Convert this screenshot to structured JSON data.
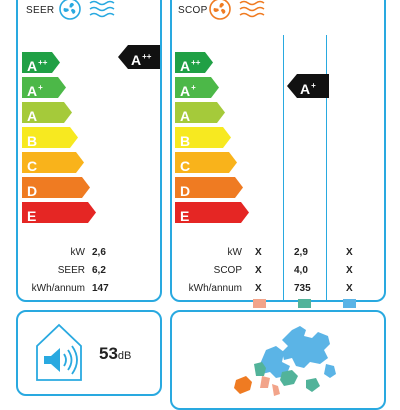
{
  "seer": {
    "title": "SEER",
    "rating": "A",
    "rating_sup": "++",
    "classes": [
      {
        "letter": "A",
        "sup": "++",
        "color": "#20a045"
      },
      {
        "letter": "A",
        "sup": "+",
        "color": "#4cb848"
      },
      {
        "letter": "A",
        "sup": "",
        "color": "#a5ca3a"
      },
      {
        "letter": "B",
        "sup": "",
        "color": "#f7e920"
      },
      {
        "letter": "C",
        "sup": "",
        "color": "#f9b31b"
      },
      {
        "letter": "D",
        "sup": "",
        "color": "#ef7b22"
      },
      {
        "letter": "E",
        "sup": "",
        "color": "#e52624"
      }
    ],
    "metrics": [
      {
        "label": "kW",
        "value": "2,6"
      },
      {
        "label": "SEER",
        "value": "6,2"
      },
      {
        "label": "kWh/annum",
        "value": "147"
      }
    ]
  },
  "scop": {
    "title": "SCOP",
    "rating": "A",
    "rating_sup": "+",
    "classes": [
      {
        "letter": "A",
        "sup": "++",
        "color": "#20a045"
      },
      {
        "letter": "A",
        "sup": "+",
        "color": "#4cb848"
      },
      {
        "letter": "A",
        "sup": "",
        "color": "#a5ca3a"
      },
      {
        "letter": "B",
        "sup": "",
        "color": "#f7e920"
      },
      {
        "letter": "C",
        "sup": "",
        "color": "#f9b31b"
      },
      {
        "letter": "D",
        "sup": "",
        "color": "#ef7b22"
      },
      {
        "letter": "E",
        "sup": "",
        "color": "#e52624"
      }
    ],
    "metric_labels": [
      "kW",
      "SCOP",
      "kWh/annum"
    ],
    "columns": [
      {
        "values": [
          "X",
          "X",
          "X"
        ],
        "color": "#f2a48a"
      },
      {
        "values": [
          "2,9",
          "4,0",
          "735"
        ],
        "color": "#52b39a"
      },
      {
        "values": [
          "X",
          "X",
          "X"
        ],
        "color": "#5bb4e6"
      }
    ]
  },
  "noise": {
    "value": "53",
    "unit": "dB"
  },
  "colors": {
    "accent": "#29a9e0",
    "badge": "#111111"
  },
  "icons": [
    "fan-icon",
    "heat-waves-icon",
    "cool-waves-icon",
    "speaker-house-icon",
    "europe-map-icon"
  ]
}
